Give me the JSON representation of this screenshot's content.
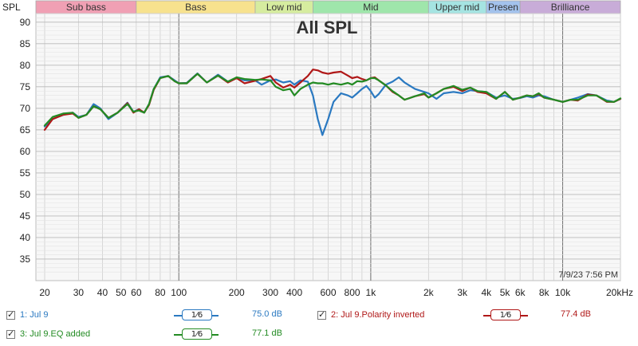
{
  "chart_data": {
    "type": "line",
    "title": "All SPL",
    "ylabel": "SPL",
    "xlabel_unit": "Hz",
    "xscale": "log",
    "xlim": [
      18,
      20000
    ],
    "ylim": [
      30,
      92
    ],
    "yticks": [
      35,
      40,
      45,
      50,
      55,
      60,
      65,
      70,
      75,
      80,
      85,
      90
    ],
    "xticks": [
      {
        "v": 20,
        "t": "20"
      },
      {
        "v": 30,
        "t": "30"
      },
      {
        "v": 40,
        "t": "40"
      },
      {
        "v": 50,
        "t": "50"
      },
      {
        "v": 60,
        "t": "60"
      },
      {
        "v": 80,
        "t": "80"
      },
      {
        "v": 100,
        "t": "100"
      },
      {
        "v": 200,
        "t": "200"
      },
      {
        "v": 300,
        "t": "300"
      },
      {
        "v": 400,
        "t": "400"
      },
      {
        "v": 600,
        "t": "600"
      },
      {
        "v": 800,
        "t": "800"
      },
      {
        "v": 1000,
        "t": "1k"
      },
      {
        "v": 2000,
        "t": "2k"
      },
      {
        "v": 3000,
        "t": "3k"
      },
      {
        "v": 4000,
        "t": "4k"
      },
      {
        "v": 5000,
        "t": "5k"
      },
      {
        "v": 6000,
        "t": "6k"
      },
      {
        "v": 8000,
        "t": "8k"
      },
      {
        "v": 10000,
        "t": "10k"
      },
      {
        "v": 20000,
        "t": "20kHz"
      }
    ],
    "timestamp": "7/9/23 7:56 PM",
    "bands": [
      {
        "label": "Sub bass",
        "from": 18,
        "to": 60,
        "color": "#f0a0b4"
      },
      {
        "label": "Bass",
        "from": 60,
        "to": 250,
        "color": "#f7e28e"
      },
      {
        "label": "Low mid",
        "from": 250,
        "to": 500,
        "color": "#d6ec9f"
      },
      {
        "label": "Mid",
        "from": 500,
        "to": 2000,
        "color": "#9fe6ab"
      },
      {
        "label": "Upper mid",
        "from": 2000,
        "to": 4000,
        "color": "#a5e4e2"
      },
      {
        "label": "Presen",
        "from": 4000,
        "to": 6000,
        "color": "#a3c2ec"
      },
      {
        "label": "Brilliance",
        "from": 6000,
        "to": 20000,
        "color": "#c8acd8"
      }
    ],
    "series": [
      {
        "name": "1: Jul 9",
        "color": "#2a79c1",
        "x": [
          20,
          22,
          25,
          28,
          30,
          33,
          36,
          39,
          43,
          48,
          54,
          58,
          62,
          66,
          70,
          74,
          80,
          88,
          95,
          100,
          110,
          125,
          140,
          160,
          180,
          200,
          220,
          250,
          270,
          300,
          320,
          350,
          380,
          400,
          430,
          470,
          500,
          530,
          560,
          600,
          640,
          700,
          760,
          800,
          850,
          900,
          950,
          1000,
          1050,
          1100,
          1200,
          1300,
          1400,
          1500,
          1700,
          1900,
          2000,
          2200,
          2400,
          2700,
          3000,
          3300,
          3600,
          4000,
          4500,
          5000,
          5500,
          6000,
          6500,
          7000,
          7500,
          8000,
          9000,
          10000,
          11000,
          12000,
          13500,
          15000,
          17000,
          18500,
          20000
        ],
        "y": [
          65.8,
          67.5,
          68.5,
          69.0,
          68.0,
          68.5,
          71.0,
          70.0,
          67.5,
          69.0,
          71.3,
          69.2,
          69.8,
          69.0,
          71.0,
          74.5,
          77.2,
          77.5,
          76.5,
          75.8,
          75.9,
          78.1,
          76.0,
          77.8,
          76.2,
          77.1,
          76.5,
          76.5,
          75.5,
          76.5,
          76.7,
          76.0,
          76.3,
          75.5,
          76.5,
          76.2,
          73.0,
          67.5,
          63.8,
          67.5,
          71.5,
          73.5,
          73.0,
          72.5,
          73.5,
          74.5,
          75.2,
          74.0,
          72.5,
          73.3,
          75.5,
          76.2,
          77.2,
          76.0,
          74.5,
          73.8,
          73.5,
          72.2,
          73.5,
          73.8,
          73.5,
          74.2,
          74.0,
          73.8,
          72.5,
          73.0,
          72.2,
          72.4,
          72.8,
          72.5,
          73.0,
          72.8,
          72.0,
          71.5,
          72.0,
          72.5,
          73.3,
          73.0,
          71.8,
          71.5,
          72.2
        ]
      },
      {
        "name": "2: Jul 9.Polarity inverted",
        "color": "#b01818",
        "x": [
          20,
          22,
          25,
          28,
          30,
          33,
          36,
          39,
          43,
          48,
          54,
          58,
          62,
          66,
          70,
          74,
          80,
          88,
          95,
          100,
          110,
          125,
          140,
          160,
          180,
          200,
          220,
          250,
          270,
          300,
          320,
          350,
          380,
          400,
          430,
          470,
          500,
          530,
          560,
          600,
          640,
          700,
          760,
          800,
          850,
          900,
          950,
          1000,
          1050,
          1100,
          1200,
          1300,
          1400,
          1500,
          1700,
          1900,
          2000,
          2200,
          2400,
          2700,
          3000,
          3300,
          3600,
          4000,
          4500,
          5000,
          5500,
          6000,
          6500,
          7000,
          7500,
          8000,
          9000,
          10000,
          11000,
          12000,
          13500,
          15000,
          17000,
          18500,
          20000
        ],
        "y": [
          65.0,
          67.5,
          68.5,
          68.8,
          67.8,
          68.5,
          70.5,
          69.8,
          67.8,
          69.0,
          71.2,
          69.0,
          69.8,
          69.0,
          70.8,
          74.3,
          77.0,
          77.5,
          76.3,
          75.8,
          75.8,
          78.0,
          76.0,
          77.6,
          76.0,
          77.0,
          75.8,
          76.4,
          76.8,
          77.5,
          76.0,
          74.8,
          75.5,
          74.8,
          76.0,
          77.5,
          79.0,
          78.8,
          78.3,
          78.0,
          78.3,
          78.5,
          77.6,
          77.0,
          77.3,
          76.8,
          76.5,
          77.0,
          77.2,
          76.5,
          75.3,
          73.8,
          73.0,
          72.0,
          72.8,
          73.3,
          72.5,
          73.5,
          74.5,
          75.0,
          74.0,
          74.8,
          73.8,
          73.5,
          72.2,
          73.8,
          72.0,
          72.5,
          73.0,
          72.8,
          73.3,
          72.5,
          72.0,
          71.5,
          72.0,
          71.8,
          73.2,
          73.0,
          71.5,
          71.5,
          72.2
        ]
      },
      {
        "name": "3: Jul 9.EQ added",
        "color": "#238b23",
        "x": [
          20,
          22,
          25,
          28,
          30,
          33,
          36,
          39,
          43,
          48,
          54,
          58,
          62,
          66,
          70,
          74,
          80,
          88,
          95,
          100,
          110,
          125,
          140,
          160,
          180,
          200,
          220,
          250,
          270,
          300,
          320,
          350,
          380,
          400,
          430,
          470,
          500,
          530,
          560,
          600,
          640,
          700,
          760,
          800,
          850,
          900,
          950,
          1000,
          1050,
          1100,
          1200,
          1300,
          1400,
          1500,
          1700,
          1900,
          2000,
          2200,
          2400,
          2700,
          3000,
          3300,
          3600,
          4000,
          4500,
          5000,
          5500,
          6000,
          6500,
          7000,
          7500,
          8000,
          9000,
          10000,
          11000,
          12000,
          13500,
          15000,
          17000,
          18500,
          20000
        ],
        "y": [
          66.0,
          68.0,
          68.8,
          69.0,
          67.8,
          68.5,
          70.5,
          69.8,
          67.8,
          69.0,
          71.0,
          69.2,
          69.5,
          69.0,
          71.0,
          74.5,
          77.0,
          77.5,
          76.3,
          75.8,
          75.8,
          78.0,
          76.0,
          77.6,
          76.2,
          77.2,
          76.8,
          76.6,
          76.7,
          76.5,
          75.0,
          74.2,
          74.5,
          73.0,
          74.5,
          75.5,
          76.0,
          75.8,
          75.8,
          75.5,
          75.8,
          75.5,
          75.9,
          75.5,
          76.3,
          76.2,
          76.5,
          77.0,
          77.0,
          76.5,
          75.3,
          74.0,
          73.0,
          72.0,
          72.8,
          73.5,
          72.5,
          73.5,
          74.5,
          75.2,
          74.3,
          74.8,
          74.0,
          73.8,
          72.2,
          73.8,
          72.0,
          72.5,
          73.0,
          72.8,
          73.5,
          72.5,
          72.0,
          71.5,
          72.0,
          72.0,
          73.0,
          73.0,
          71.6,
          71.5,
          72.3
        ]
      }
    ]
  },
  "legend": [
    {
      "label": "1: Jul 9",
      "color": "#2a79c1",
      "smoothing": "1⁄6",
      "value": "75.0 dB"
    },
    {
      "label": "2: Jul 9.Polarity inverted",
      "color": "#b01818",
      "smoothing": "1⁄6",
      "value": "77.4 dB"
    },
    {
      "label": "3: Jul 9.EQ added",
      "color": "#238b23",
      "smoothing": "1⁄6",
      "value": "77.1 dB"
    }
  ]
}
